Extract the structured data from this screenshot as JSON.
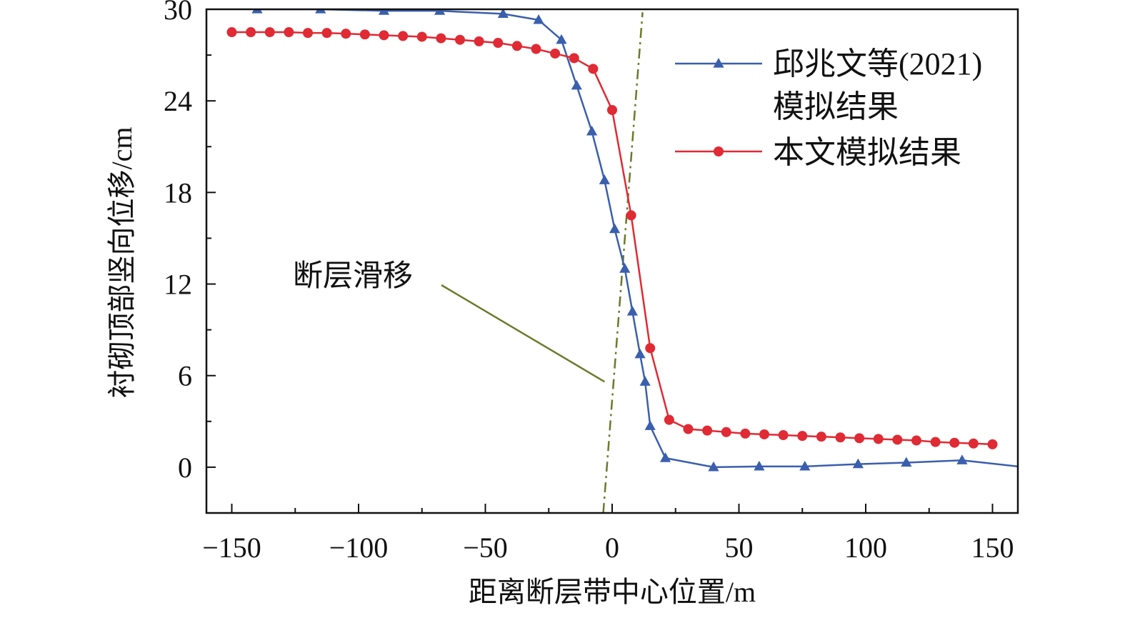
{
  "chart_data": {
    "type": "line",
    "xlabel": "距离断层带中心位置/m",
    "ylabel": "衬砌顶部竖向位移/cm",
    "xlim": [
      -160,
      160
    ],
    "ylim": [
      -3,
      30
    ],
    "xticks": [
      -150,
      -100,
      -50,
      0,
      50,
      100,
      150
    ],
    "xtick_labels": [
      "−150",
      "−100",
      "−50",
      "0",
      "50",
      "100",
      "150"
    ],
    "yticks": [
      0,
      6,
      12,
      18,
      24,
      30
    ],
    "ytick_labels": [
      "0",
      "6",
      "12",
      "18",
      "24",
      "30"
    ],
    "series": [
      {
        "name": "邱兆文等(2021) 模拟结果",
        "legend_lines": [
          "邱兆文等(2021)",
          "模拟结果"
        ],
        "color": "#3a5fad",
        "marker": "triangle",
        "x": [
          -160,
          -140,
          -115,
          -90,
          -68,
          -43,
          -29,
          -20,
          -14,
          -8,
          -3,
          1,
          5,
          8,
          11,
          13,
          15,
          21,
          40,
          58,
          76,
          97,
          116,
          138,
          160
        ],
        "y": [
          30.2,
          30.0,
          30.0,
          29.9,
          29.9,
          29.7,
          29.3,
          28.0,
          25.0,
          22.0,
          18.8,
          15.6,
          13.0,
          10.2,
          7.4,
          5.6,
          2.7,
          0.6,
          0.0,
          0.05,
          0.05,
          0.2,
          0.3,
          0.45,
          0.05
        ],
        "markers_x": [
          -140,
          -115,
          -90,
          -68,
          -43,
          -29,
          -20,
          -14,
          -8,
          -3,
          1,
          5,
          8,
          11,
          13,
          15,
          21,
          40,
          58,
          76,
          97,
          116,
          138
        ]
      },
      {
        "name": "本文模拟结果",
        "color": "#e02a34",
        "marker": "circle",
        "x": [
          -150,
          -142.5,
          -135,
          -127.5,
          -120,
          -112.5,
          -105,
          -97.5,
          -90,
          -82.5,
          -75,
          -67.5,
          -60,
          -52.5,
          -45,
          -37.5,
          -30,
          -22.5,
          -15,
          -7.5,
          0,
          7.5,
          15,
          22.5,
          30,
          37.5,
          45,
          52.5,
          60,
          67.5,
          75,
          82.5,
          90,
          97.5,
          105,
          112.5,
          120,
          127.5,
          135,
          142.5,
          150
        ],
        "y": [
          28.5,
          28.5,
          28.5,
          28.5,
          28.45,
          28.45,
          28.4,
          28.35,
          28.3,
          28.25,
          28.2,
          28.1,
          28.0,
          27.9,
          27.8,
          27.6,
          27.4,
          27.1,
          26.8,
          26.1,
          23.4,
          16.5,
          7.8,
          3.1,
          2.5,
          2.4,
          2.3,
          2.2,
          2.15,
          2.1,
          2.05,
          2.0,
          1.95,
          1.9,
          1.85,
          1.8,
          1.75,
          1.65,
          1.6,
          1.55,
          1.5
        ]
      }
    ],
    "fault_line": {
      "color": "#6b7a2a",
      "style": "dash-dot",
      "x1": -3.5,
      "y1": -3,
      "x2": 12,
      "y2": 29.8
    },
    "annotation": {
      "text": "断层滑移",
      "arrow_to": [
        -3,
        5.6
      ]
    },
    "legend_position": "top-right"
  }
}
